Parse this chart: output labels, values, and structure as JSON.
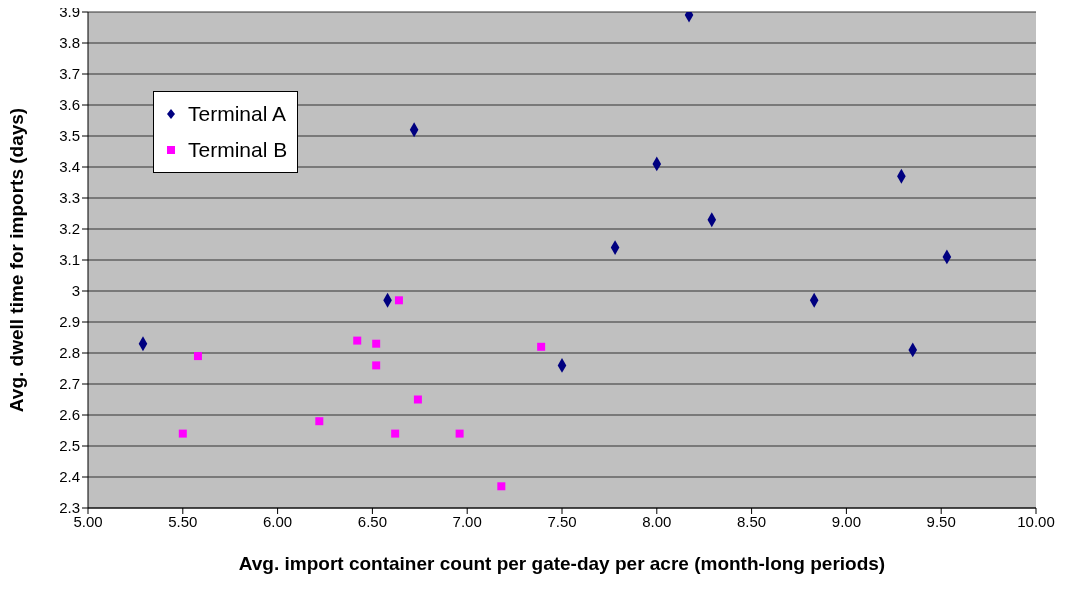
{
  "chart_data": {
    "type": "scatter",
    "xlabel": "Avg. import container count per gate-day per acre (month-long periods)",
    "ylabel": "Avg. dwell time for imports (days)",
    "xlim": [
      5,
      10
    ],
    "xticks": [
      {
        "value": 5,
        "label": "5.00"
      },
      {
        "value": 5.5,
        "label": "5.50"
      },
      {
        "value": 6,
        "label": "6.00"
      },
      {
        "value": 6.5,
        "label": "6.50"
      },
      {
        "value": 7,
        "label": "7.00"
      },
      {
        "value": 7.5,
        "label": "7.50"
      },
      {
        "value": 8,
        "label": "8.00"
      },
      {
        "value": 8.5,
        "label": "8.50"
      },
      {
        "value": 9,
        "label": "9.00"
      },
      {
        "value": 9.5,
        "label": "9.50"
      },
      {
        "value": 10,
        "label": "10.00"
      }
    ],
    "ylim": [
      2.3,
      3.9
    ],
    "yticks": [
      2.3,
      2.4,
      2.5,
      2.6,
      2.7,
      2.8,
      2.9,
      3,
      3.1,
      3.2,
      3.3,
      3.4,
      3.5,
      3.6,
      3.7,
      3.8,
      3.9
    ],
    "grid": "y",
    "legend": "top left",
    "series": [
      {
        "name": "Terminal A",
        "color": "#000080",
        "marker": "diamond",
        "x": [
          5.29,
          6.58,
          6.72,
          7.5,
          7.78,
          8.0,
          8.17,
          8.29,
          8.83,
          9.29,
          9.35,
          9.53
        ],
        "values": [
          2.83,
          2.97,
          3.52,
          2.76,
          3.14,
          3.41,
          3.89,
          3.23,
          2.97,
          3.37,
          2.81,
          3.11
        ]
      },
      {
        "name": "Terminal B",
        "color": "#ff00ff",
        "marker": "square",
        "x": [
          5.5,
          5.58,
          6.22,
          6.42,
          6.52,
          6.52,
          6.64,
          6.62,
          6.74,
          6.96,
          7.18,
          7.39
        ],
        "values": [
          2.54,
          2.79,
          2.58,
          2.84,
          2.83,
          2.76,
          2.97,
          2.54,
          2.65,
          2.54,
          2.37,
          2.82
        ]
      }
    ]
  }
}
